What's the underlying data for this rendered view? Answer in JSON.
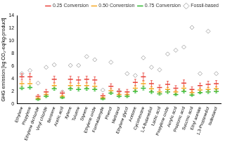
{
  "chart_data": {
    "type": "scatter",
    "y_label": "GHG emission [kg CO₂-eq/kg-product]",
    "categories": [
      "Ethylene",
      "Propylene",
      "Ethylene dichloride",
      "Vinyl chloride",
      "Benzene",
      "Acetic acid",
      "Xylene",
      "Toluene",
      "Styrene",
      "Ethylene oxide",
      "Formaldehyde",
      "Phenol",
      "Methanol",
      "Ethylene glycol",
      "Acetone",
      "Cyclohexane",
      "1,4-Butanediol",
      "Lactic acid",
      "Propylene oxide",
      "Acrylic acid",
      "Propionic acid",
      "Succinic acid",
      "Ethyl acetate",
      "1,3-Propanediol",
      "Isobutanol"
    ],
    "series": [
      {
        "name": "0.25 Conversion",
        "color": "#e8423a",
        "marker": "dash",
        "values": [
          4.3,
          4.3,
          1.2,
          1.9,
          3.9,
          1.7,
          3.9,
          3.8,
          3.9,
          3.8,
          1.3,
          2.8,
          2.0,
          1.9,
          3.4,
          4.3,
          3.2,
          2.6,
          3.1,
          2.5,
          3.3,
          2.3,
          2.9,
          3.1,
          3.2
        ],
        "errors": [
          0.5,
          0.5,
          0.3,
          0.4,
          0.5,
          0.3,
          0.5,
          0.5,
          0.5,
          0.5,
          0.3,
          0.4,
          0.4,
          0.4,
          0.5,
          0.6,
          0.5,
          0.4,
          0.5,
          0.4,
          0.5,
          0.4,
          0.4,
          0.5,
          0.5
        ]
      },
      {
        "name": "0.50 Conversion",
        "color": "#f5a623",
        "marker": "dash",
        "values": [
          3.2,
          3.2,
          0.9,
          1.5,
          2.9,
          1.2,
          2.9,
          2.9,
          2.9,
          2.8,
          1.0,
          2.1,
          1.5,
          1.5,
          2.5,
          3.2,
          2.4,
          1.9,
          2.3,
          1.9,
          2.5,
          1.8,
          2.2,
          2.3,
          2.4
        ],
        "errors": [
          0.35,
          0.35,
          0.2,
          0.25,
          0.35,
          0.2,
          0.35,
          0.35,
          0.35,
          0.35,
          0.2,
          0.3,
          0.25,
          0.25,
          0.35,
          0.4,
          0.35,
          0.3,
          0.35,
          0.3,
          0.35,
          0.3,
          0.3,
          0.35,
          0.35
        ]
      },
      {
        "name": "0.75 Conversion",
        "color": "#2eb82e",
        "marker": "dash",
        "values": [
          2.5,
          2.6,
          0.7,
          1.2,
          2.4,
          1.0,
          2.4,
          2.3,
          2.4,
          2.3,
          0.8,
          1.7,
          1.2,
          1.2,
          2.0,
          2.5,
          1.9,
          1.6,
          1.9,
          1.5,
          2.0,
          1.4,
          1.8,
          1.9,
          2.0
        ],
        "errors": [
          0.25,
          0.25,
          0.15,
          0.2,
          0.25,
          0.15,
          0.25,
          0.25,
          0.25,
          0.25,
          0.15,
          0.2,
          0.2,
          0.2,
          0.25,
          0.3,
          0.25,
          0.2,
          0.25,
          0.2,
          0.25,
          0.2,
          0.2,
          0.25,
          0.25
        ]
      },
      {
        "name": "Fossil-based",
        "color": "#999999",
        "marker": "diamond",
        "values": [
          4.8,
          5.3,
          3.3,
          5.8,
          6.2,
          1.9,
          6.1,
          6.1,
          7.5,
          7.0,
          2.2,
          6.6,
          2.0,
          4.8,
          4.5,
          7.3,
          5.8,
          5.4,
          7.9,
          8.5,
          9.0,
          12.1,
          4.8,
          11.5,
          4.8
        ]
      }
    ],
    "ylim": [
      0,
      14
    ],
    "yticks": [
      0,
      2,
      4,
      6,
      8,
      10,
      12,
      14
    ],
    "grid": false,
    "legend": "upper right"
  }
}
